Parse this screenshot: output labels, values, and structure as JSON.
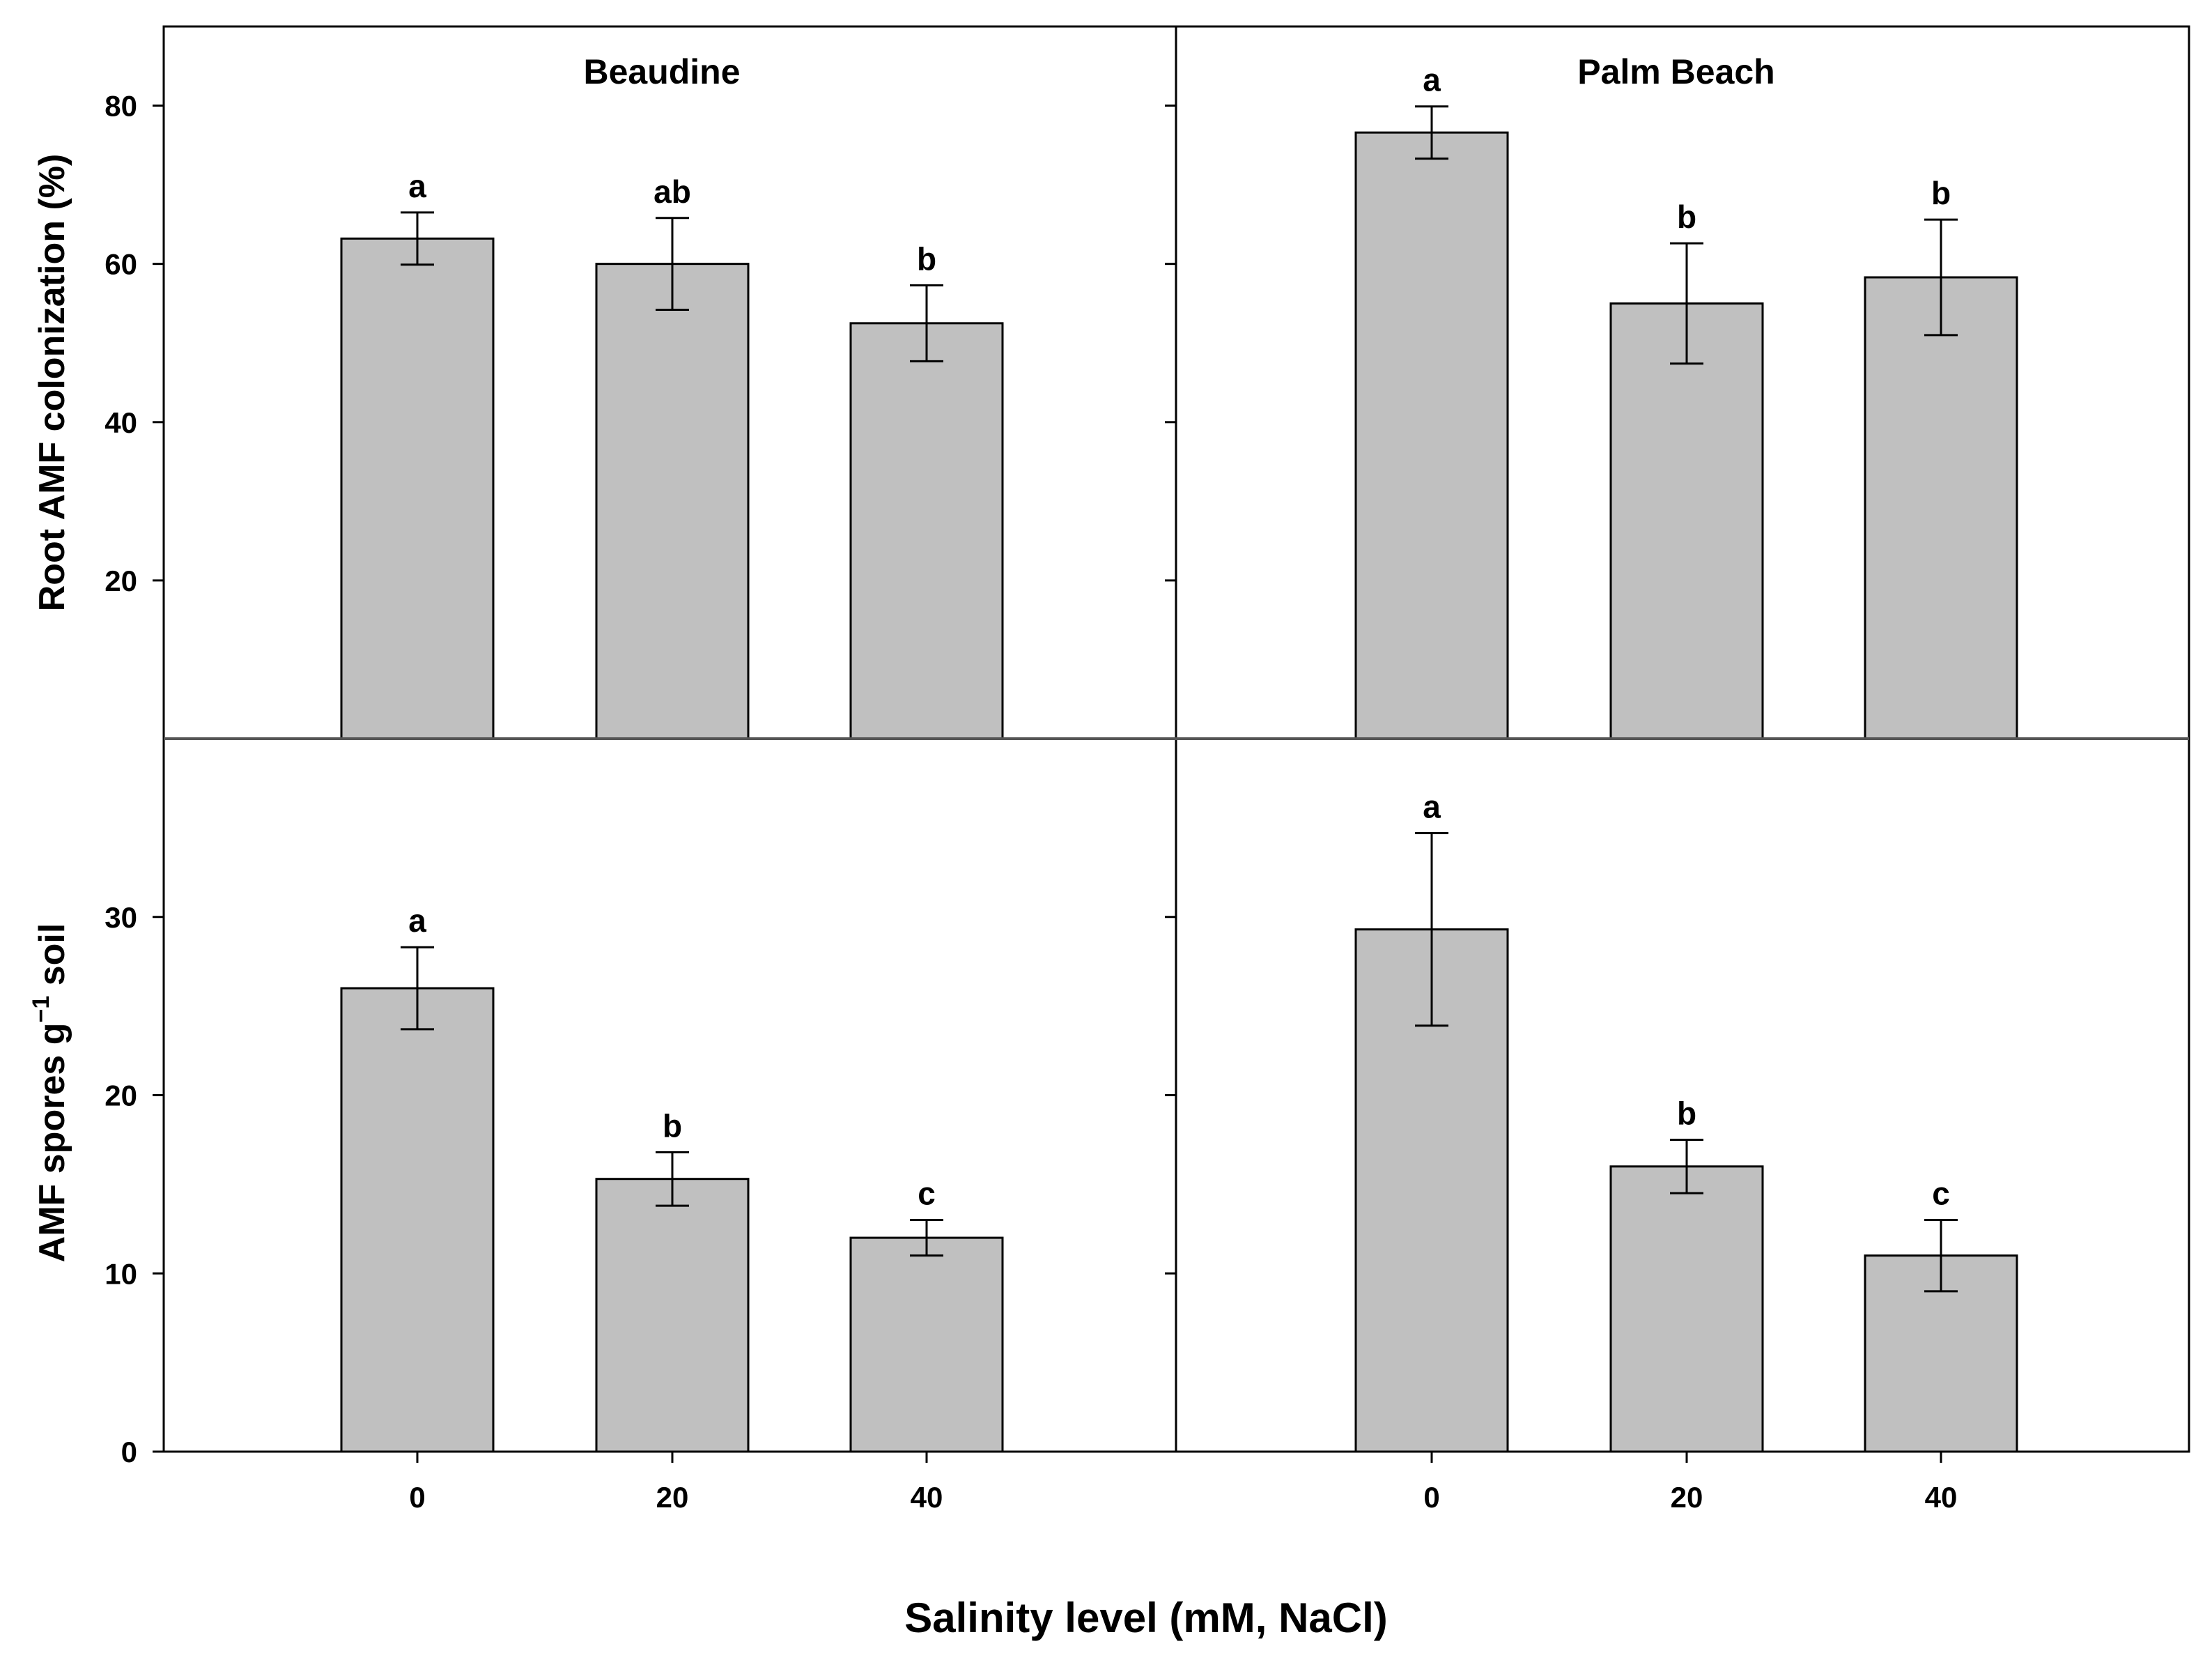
{
  "colors": {
    "bar_fill": "#c0c0c0",
    "stroke": "#000000",
    "background": "#ffffff",
    "divider": "#555555"
  },
  "figure": {
    "xlabel": "Salinity level (mM, NaCl)"
  },
  "chart_data": [
    {
      "type": "bar",
      "title": "Beaudine",
      "row": "top",
      "column": "left",
      "ylabel": "Root AMF colonization (%)",
      "ylim": [
        0,
        90
      ],
      "yticks": [
        20,
        40,
        60,
        80
      ],
      "ytick_labels": [
        "20",
        "40",
        "60",
        "80"
      ],
      "categories": [
        "0",
        "20",
        "40"
      ],
      "values": [
        63.2,
        60.0,
        52.5
      ],
      "errors": [
        3.3,
        5.8,
        4.8
      ],
      "letters": [
        "a",
        "ab",
        "b"
      ]
    },
    {
      "type": "bar",
      "title": "Palm Beach",
      "row": "top",
      "column": "right",
      "ylabel": "",
      "ylim": [
        0,
        90
      ],
      "yticks": [
        20,
        40,
        60,
        80
      ],
      "ytick_labels": [],
      "categories": [
        "0",
        "20",
        "40"
      ],
      "values": [
        76.6,
        55.0,
        58.3
      ],
      "errors": [
        3.3,
        7.6,
        7.3
      ],
      "letters": [
        "a",
        "b",
        "b"
      ]
    },
    {
      "type": "bar",
      "title": "",
      "row": "bottom",
      "column": "left",
      "ylabel": "AMF spores g",
      "ylabel_superscript": "−1",
      "ylabel_suffix": " soil",
      "ylim": [
        0,
        40
      ],
      "yticks": [
        0,
        10,
        20,
        30
      ],
      "ytick_labels": [
        "0",
        "10",
        "20",
        "30"
      ],
      "categories": [
        "0",
        "20",
        "40"
      ],
      "values": [
        26.0,
        15.3,
        12.0
      ],
      "errors": [
        2.3,
        1.5,
        1.0
      ],
      "letters": [
        "a",
        "b",
        "c"
      ]
    },
    {
      "type": "bar",
      "title": "",
      "row": "bottom",
      "column": "right",
      "ylabel": "",
      "ylim": [
        0,
        40
      ],
      "yticks": [
        0,
        10,
        20,
        30
      ],
      "ytick_labels": [],
      "categories": [
        "0",
        "20",
        "40"
      ],
      "values": [
        29.3,
        16.0,
        11.0
      ],
      "errors": [
        5.4,
        1.5,
        2.0
      ],
      "letters": [
        "a",
        "b",
        "c"
      ]
    }
  ]
}
